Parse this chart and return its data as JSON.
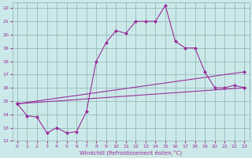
{
  "xlabel": "Windchill (Refroidissement éolien,°C)",
  "bg_color": "#cce8e8",
  "grid_color": "#99bbbb",
  "line_color": "#993399",
  "xlim": [
    -0.5,
    23.5
  ],
  "ylim": [
    12,
    22.4
  ],
  "yticks": [
    12,
    13,
    14,
    15,
    16,
    17,
    18,
    19,
    20,
    21,
    22
  ],
  "xticks": [
    0,
    1,
    2,
    3,
    4,
    5,
    6,
    7,
    8,
    9,
    10,
    11,
    12,
    13,
    14,
    15,
    16,
    17,
    18,
    19,
    20,
    21,
    22,
    23
  ],
  "line1_x": [
    0,
    1,
    2,
    3,
    4,
    5,
    6,
    7,
    8,
    9,
    10,
    11,
    12,
    13,
    14,
    15,
    16,
    17,
    18,
    19,
    20,
    21,
    22,
    23
  ],
  "line1_y": [
    14.8,
    13.9,
    13.8,
    12.6,
    13.0,
    12.6,
    12.7,
    14.2,
    18.0,
    19.4,
    20.3,
    20.1,
    21.0,
    21.0,
    21.0,
    22.2,
    19.5,
    19.0,
    19.0,
    17.2,
    16.0,
    16.0,
    16.2,
    16.0
  ],
  "line2_x": [
    0,
    23
  ],
  "line2_y": [
    14.8,
    16.0
  ],
  "line3_x": [
    0,
    23
  ],
  "line3_y": [
    14.8,
    17.2
  ],
  "figwidth": 3.2,
  "figheight": 2.0,
  "dpi": 100
}
